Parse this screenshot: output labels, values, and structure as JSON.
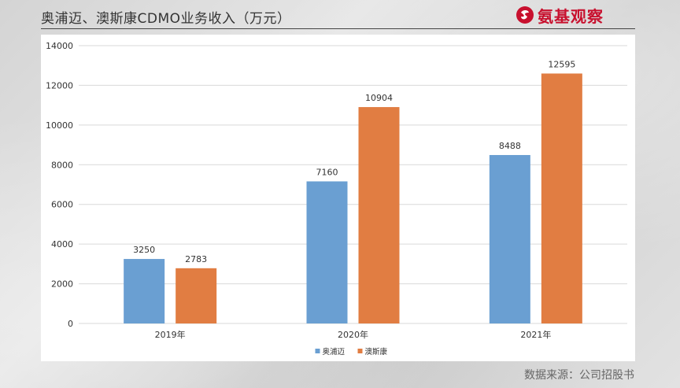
{
  "page": {
    "title": "奥浦迈、澳斯康CDMO业务收入（万元）",
    "brand": "氨基观察",
    "source": "数据来源：公司招股书"
  },
  "colors": {
    "series1": "#6a9fd2",
    "series2": "#e17d42",
    "grid": "#d9d9d9",
    "axis_text": "#333333",
    "brand": "#c8102e"
  },
  "icons": {
    "brand_logo": "brand-logo-icon"
  },
  "chart_data": {
    "type": "bar",
    "categories": [
      "2019年",
      "2020年",
      "2021年"
    ],
    "series": [
      {
        "name": "奥浦迈",
        "values": [
          3250,
          7160,
          8488
        ]
      },
      {
        "name": "澳斯康",
        "values": [
          2783,
          10904,
          12595
        ]
      }
    ],
    "title": "",
    "xlabel": "",
    "ylabel": "",
    "ylim": [
      0,
      14000
    ],
    "yticks": [
      0,
      2000,
      4000,
      6000,
      8000,
      10000,
      12000,
      14000
    ],
    "data_labels": true,
    "grid": true,
    "legend_position": "bottom-center"
  }
}
